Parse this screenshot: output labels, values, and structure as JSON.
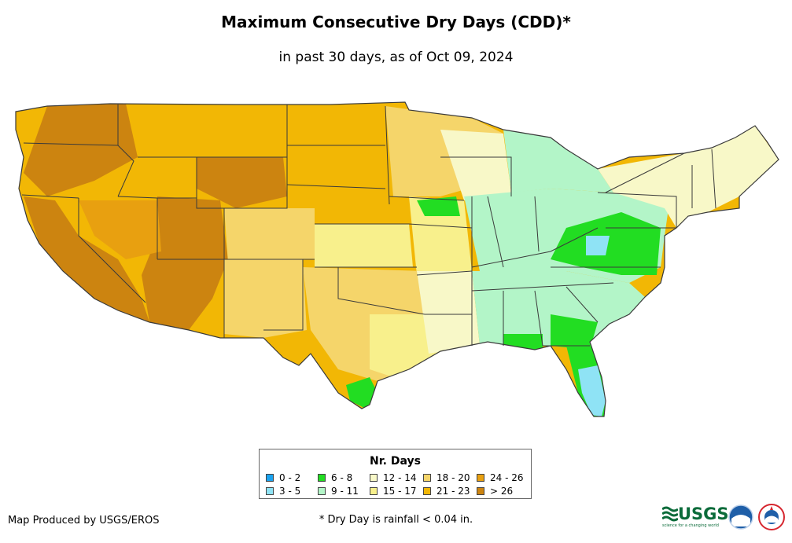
{
  "title": "Maximum Consecutive Dry Days (CDD)*",
  "subtitle": "in past 30 days, as of Oct 09, 2024",
  "legend": {
    "title": "Nr. Days",
    "items": [
      {
        "label": "0 - 2",
        "color": "#1aa3f0"
      },
      {
        "label": "3 - 5",
        "color": "#8fe3f5"
      },
      {
        "label": "6 - 8",
        "color": "#22dd22"
      },
      {
        "label": "9 - 11",
        "color": "#b3f5c8"
      },
      {
        "label": "12 - 14",
        "color": "#f8f8c8"
      },
      {
        "label": "15 - 17",
        "color": "#f8f08c"
      },
      {
        "label": "18 - 20",
        "color": "#f5d56a"
      },
      {
        "label": "21 - 23",
        "color": "#f2b705"
      },
      {
        "label": "24 - 26",
        "color": "#e8a010"
      },
      {
        "label": "> 26",
        "color": "#cc8410"
      }
    ]
  },
  "footer": {
    "credit": "Map Produced by USGS/EROS",
    "footnote": "* Dry Day is rainfall < 0.04 in.",
    "logo_text": "USGS",
    "logo_tagline": "science for a changing world"
  },
  "colors": {
    "state_border": "#3a3a3a",
    "noaa_blue": "#1f5fa8",
    "nws_red": "#d6262f"
  }
}
